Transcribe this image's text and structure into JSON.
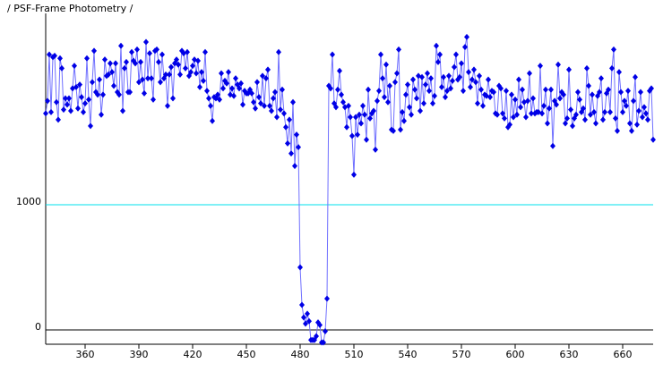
{
  "chart_data": {
    "type": "scatter-line",
    "title": "/ PSF-Frame Photometry /",
    "series": [
      {
        "color": "#0000e6",
        "line_color": "#6f6fff",
        "x": [
          338,
          339,
          340,
          341,
          342,
          343,
          344,
          345,
          346,
          347,
          348,
          349,
          350,
          351,
          352,
          353,
          354,
          355,
          356,
          357,
          358,
          359,
          360,
          361,
          362,
          363,
          364,
          365,
          366,
          367,
          368,
          369,
          370,
          371,
          372,
          373,
          374,
          375,
          376,
          377,
          378,
          379,
          380,
          381,
          382,
          383,
          384,
          385,
          386,
          387,
          388,
          389,
          390,
          391,
          392,
          393,
          394,
          395,
          396,
          397,
          398,
          399,
          400,
          401,
          402,
          403,
          404,
          405,
          406,
          407,
          408,
          409,
          410,
          411,
          412,
          413,
          414,
          415,
          416,
          417,
          418,
          419,
          420,
          421,
          422,
          423,
          424,
          425,
          426,
          427,
          428,
          429,
          430,
          431,
          432,
          433,
          434,
          435,
          436,
          437,
          438,
          439,
          440,
          441,
          442,
          443,
          444,
          445,
          446,
          447,
          448,
          449,
          450,
          451,
          452,
          453,
          454,
          455,
          456,
          457,
          458,
          459,
          460,
          461,
          462,
          463,
          464,
          465,
          466,
          467,
          468,
          469,
          470,
          471,
          472,
          473,
          474,
          475,
          476,
          477,
          478,
          479,
          480,
          481,
          482,
          483,
          484,
          485,
          486,
          487,
          488,
          489,
          490,
          491,
          492,
          493,
          494,
          495,
          496,
          497,
          498,
          499,
          500,
          501,
          502,
          503,
          504,
          505,
          506,
          507,
          508,
          509,
          510,
          511,
          512,
          513,
          514,
          515,
          516,
          517,
          518,
          519,
          520,
          521,
          522,
          523,
          524,
          525,
          526,
          527,
          528,
          529,
          530,
          531,
          532,
          533,
          534,
          535,
          536,
          537,
          538,
          539,
          540,
          541,
          542,
          543,
          544,
          545,
          546,
          547,
          548,
          549,
          550,
          551,
          552,
          553,
          554,
          555,
          556,
          557,
          558,
          559,
          560,
          561,
          562,
          563,
          564,
          565,
          566,
          567,
          568,
          569,
          570,
          571,
          572,
          573,
          574,
          575,
          576,
          577,
          578,
          579,
          580,
          581,
          582,
          583,
          584,
          585,
          586,
          587,
          588,
          589,
          590,
          591,
          592,
          593,
          594,
          595,
          596,
          597,
          598,
          599,
          600,
          601,
          602,
          603,
          604,
          605,
          606,
          607,
          608,
          609,
          610,
          611,
          612,
          613,
          614,
          615,
          616,
          617,
          618,
          619,
          620,
          621,
          622,
          623,
          624,
          625,
          626,
          627,
          628,
          629,
          630,
          631,
          632,
          633,
          634,
          635,
          636,
          637,
          638,
          639,
          640,
          641,
          642,
          643,
          644,
          645,
          646,
          647,
          648,
          649,
          650,
          651,
          652,
          653,
          654,
          655,
          656,
          657,
          658,
          659,
          660,
          661,
          662,
          663,
          664,
          665,
          666,
          667,
          668,
          669,
          670,
          671,
          672,
          673,
          674,
          675,
          676,
          677
        ],
        "values": [
          1730,
          1830,
          2200,
          1740,
          2180,
          2190,
          1820,
          1680,
          2170,
          2090,
          1760,
          1850,
          1800,
          1850,
          1750,
          1930,
          2110,
          1940,
          1770,
          1960,
          1860,
          1740,
          1810,
          2170,
          1840,
          1630,
          1980,
          2230,
          1900,
          1880,
          2000,
          1720,
          1880,
          2160,
          2030,
          2040,
          2130,
          2060,
          1950,
          2130,
          1900,
          1880,
          2270,
          1750,
          2090,
          2140,
          1900,
          1900,
          2220,
          2150,
          2130,
          2240,
          1980,
          2140,
          2000,
          1890,
          2300,
          2010,
          2210,
          2010,
          1840,
          2230,
          2240,
          2140,
          1980,
          2200,
          2010,
          2040,
          1790,
          2040,
          2100,
          1850,
          2130,
          2160,
          2120,
          2040,
          2230,
          2210,
          2090,
          2220,
          2030,
          2060,
          2110,
          2160,
          2050,
          2150,
          1940,
          2060,
          1990,
          2220,
          1910,
          1850,
          1790,
          1670,
          1860,
          1850,
          1880,
          1840,
          2050,
          1930,
          1990,
          1970,
          2060,
          1880,
          1930,
          1870,
          2010,
          1960,
          1930,
          1970,
          1800,
          1910,
          1890,
          1890,
          1920,
          1890,
          1820,
          1770,
          1980,
          1860,
          1810,
          2030,
          1790,
          2010,
          2080,
          1790,
          1750,
          1850,
          1900,
          1700,
          2220,
          1760,
          1920,
          1730,
          1620,
          1490,
          1680,
          1410,
          1820,
          1310,
          1560,
          1460,
          500,
          200,
          100,
          50,
          130,
          70,
          -80,
          -80,
          -80,
          -50,
          60,
          40,
          -100,
          -100,
          -10,
          250,
          1950,
          1930,
          2200,
          1810,
          1780,
          1920,
          2070,
          1880,
          1820,
          1780,
          1620,
          1790,
          1700,
          1550,
          1240,
          1700,
          1560,
          1720,
          1650,
          1790,
          1720,
          1520,
          1920,
          1690,
          1730,
          1750,
          1440,
          1830,
          1910,
          2200,
          2010,
          1860,
          2120,
          1820,
          1950,
          1600,
          1590,
          1980,
          2050,
          2240,
          1600,
          1740,
          1670,
          1880,
          1960,
          1780,
          1720,
          2000,
          1920,
          1850,
          2030,
          1750,
          2020,
          1810,
          1960,
          2050,
          1910,
          2010,
          1810,
          1870,
          2270,
          2140,
          2200,
          1940,
          2020,
          1860,
          1910,
          2030,
          1930,
          1990,
          2100,
          2200,
          2000,
          2020,
          2130,
          1910,
          2260,
          2340,
          2060,
          1940,
          2000,
          2080,
          1980,
          1810,
          2030,
          1920,
          1790,
          1880,
          1870,
          2000,
          1860,
          1910,
          1900,
          1730,
          1720,
          1950,
          1930,
          1730,
          1690,
          1910,
          1620,
          1640,
          1880,
          1700,
          1840,
          1720,
          2000,
          1780,
          1920,
          1820,
          1700,
          1830,
          2050,
          1730,
          1850,
          1730,
          1740,
          1740,
          2110,
          1730,
          1790,
          1920,
          1650,
          1770,
          1920,
          1470,
          1830,
          1800,
          2120,
          1850,
          1900,
          1880,
          1650,
          1690,
          2080,
          1760,
          1630,
          1690,
          1720,
          1900,
          1840,
          1740,
          1770,
          1680,
          2090,
          1950,
          1720,
          1880,
          1740,
          1650,
          1870,
          1900,
          2010,
          1680,
          1740,
          1890,
          1920,
          1740,
          2090,
          2240,
          1690,
          1590,
          2060,
          1900,
          1740,
          1830,
          1790,
          1910,
          1650,
          1590,
          1830,
          2020,
          1640,
          1750,
          1900,
          1700,
          1780,
          1730,
          1680,
          1910,
          1930,
          1520
        ]
      }
    ],
    "xlim": [
      338,
      677
    ],
    "xticks": [
      360,
      390,
      420,
      450,
      480,
      510,
      540,
      570,
      600,
      630,
      660
    ],
    "ylim": [
      -114,
      2493
    ],
    "yticks": [
      0,
      1000
    ],
    "ytick_line_colors": [
      "#000000",
      "#00e0ee"
    ]
  }
}
